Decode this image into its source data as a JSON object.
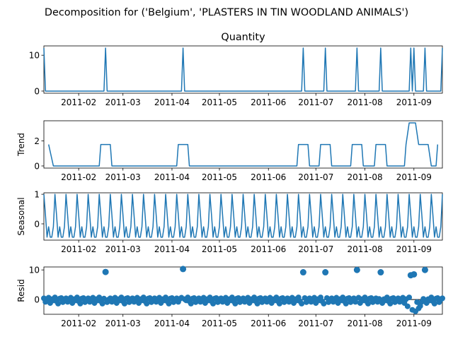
{
  "figure": {
    "suptitle": "Decomposition for ('Belgium', 'PLASTERS IN TIN WOODLAND ANIMALS')"
  },
  "colors": {
    "series": "#1f77b4"
  },
  "x_axis": {
    "start": "2011-01-10",
    "end": "2011-09-19",
    "tick_labels": [
      "2011-02",
      "2011-03",
      "2011-04",
      "2011-05",
      "2011-06",
      "2011-07",
      "2011-08",
      "2011-09"
    ],
    "tick_dates": [
      "2011-02-01",
      "2011-03-01",
      "2011-04-01",
      "2011-05-01",
      "2011-06-01",
      "2011-07-01",
      "2011-08-01",
      "2011-09-01"
    ]
  },
  "chart_data": [
    {
      "type": "line",
      "title": "Quantity",
      "ylabel": "",
      "ylim": [
        -0.6,
        12.6
      ],
      "yticks": [
        0,
        10
      ],
      "baseline": 0,
      "spikes": [
        {
          "date": "2011-01-10",
          "value": 12
        },
        {
          "date": "2011-02-18",
          "value": 12
        },
        {
          "date": "2011-04-08",
          "value": 12
        },
        {
          "date": "2011-06-23",
          "value": 12
        },
        {
          "date": "2011-07-07",
          "value": 12
        },
        {
          "date": "2011-07-27",
          "value": 12
        },
        {
          "date": "2011-08-11",
          "value": 12
        },
        {
          "date": "2011-08-30",
          "value": 12
        },
        {
          "date": "2011-09-01",
          "value": 12
        },
        {
          "date": "2011-09-08",
          "value": 12
        },
        {
          "date": "2011-09-19",
          "value": 12
        }
      ]
    },
    {
      "type": "line",
      "title": "",
      "ylabel": "Trend",
      "ylim": [
        -0.17,
        3.6
      ],
      "yticks": [
        0,
        2
      ],
      "baseline": 0,
      "start_date": "2011-01-13",
      "start_value": 1.71,
      "end_date": "2011-09-16",
      "segments": [
        {
          "up": "2011-02-15",
          "down": "2011-02-21",
          "value": 1.71
        },
        {
          "up": "2011-04-05",
          "down": "2011-04-11",
          "value": 1.71
        },
        {
          "up": "2011-06-20",
          "down": "2011-06-26",
          "value": 1.71
        },
        {
          "up": "2011-07-04",
          "down": "2011-07-10",
          "value": 1.71
        },
        {
          "up": "2011-07-24",
          "down": "2011-07-30",
          "value": 1.71
        },
        {
          "up": "2011-08-08",
          "down": "2011-08-14",
          "value": 1.71
        }
      ],
      "tail": [
        {
          "date": "2011-08-27",
          "value": 1.71
        },
        {
          "date": "2011-08-29",
          "value": 3.43
        },
        {
          "date": "2011-09-02",
          "value": 3.43
        },
        {
          "date": "2011-09-04",
          "value": 1.71
        },
        {
          "date": "2011-09-10",
          "value": 1.71
        },
        {
          "date": "2011-09-12",
          "value": 0
        },
        {
          "date": "2011-09-15",
          "value": 0
        },
        {
          "date": "2011-09-16",
          "value": 1.71
        }
      ]
    },
    {
      "type": "line",
      "title": "",
      "ylabel": "Seasonal",
      "ylim": [
        -0.55,
        1.05
      ],
      "yticks": [
        0,
        1
      ],
      "period_days": 7,
      "pattern": [
        1.0,
        0.3,
        -0.45,
        -0.1,
        -0.45,
        -0.45,
        -0.1
      ]
    },
    {
      "type": "scatter",
      "title": "",
      "ylabel": "Resid",
      "ylim": [
        -5,
        11
      ],
      "yticks": [
        0,
        10
      ],
      "zero_line": true,
      "outliers": [
        {
          "date": "2011-02-18",
          "value": 9.3
        },
        {
          "date": "2011-04-08",
          "value": 10.3
        },
        {
          "date": "2011-06-23",
          "value": 9.2
        },
        {
          "date": "2011-07-07",
          "value": 9.2
        },
        {
          "date": "2011-07-27",
          "value": 10.0
        },
        {
          "date": "2011-08-11",
          "value": 9.2
        },
        {
          "date": "2011-08-30",
          "value": 8.2
        },
        {
          "date": "2011-09-01",
          "value": 8.5
        },
        {
          "date": "2011-09-08",
          "value": 10.0
        }
      ],
      "noise_pattern": [
        0.4,
        -0.8,
        0.2,
        0.6,
        -1.2,
        0.1,
        -0.3,
        0.7,
        -0.6,
        -1.4,
        0.3,
        0.5,
        -0.9,
        0.0
      ],
      "dip": [
        {
          "date": "2011-08-28",
          "value": -2.3
        },
        {
          "date": "2011-08-31",
          "value": -3.5
        },
        {
          "date": "2011-09-02",
          "value": -4.0
        },
        {
          "date": "2011-09-04",
          "value": -3.0
        },
        {
          "date": "2011-09-05",
          "value": -2.2
        }
      ]
    }
  ]
}
